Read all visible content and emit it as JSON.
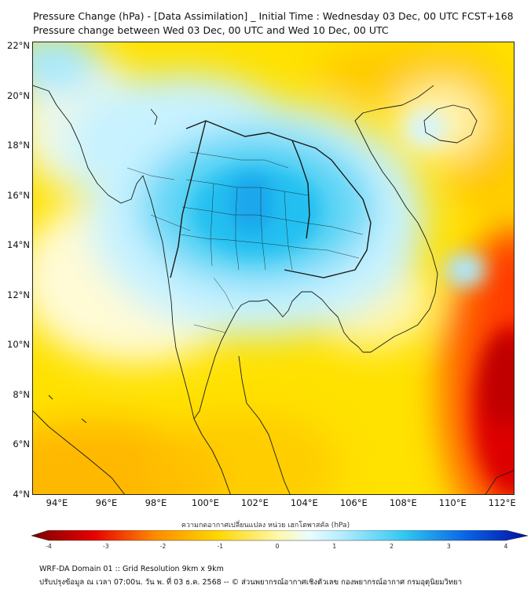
{
  "title": {
    "line1": "Pressure Change (hPa) - [Data Assimilation] _ Initial Time : Wednesday 03 Dec, 00 UTC FCST+168",
    "line2": "Pressure change between Wed 03 Dec, 00 UTC and Wed 10 Dec, 00 UTC"
  },
  "axes": {
    "lat_labels": [
      "22°N",
      "20°N",
      "18°N",
      "16°N",
      "14°N",
      "12°N",
      "10°N",
      "8°N",
      "6°N",
      "4°N"
    ],
    "lat_values": [
      22,
      20,
      18,
      16,
      14,
      12,
      10,
      8,
      6,
      4
    ],
    "lon_labels": [
      "94°E",
      "96°E",
      "98°E",
      "100°E",
      "102°E",
      "104°E",
      "106°E",
      "108°E",
      "110°E",
      "112°E"
    ],
    "lon_values": [
      94,
      96,
      98,
      100,
      102,
      104,
      106,
      108,
      110,
      112
    ],
    "lat_range": [
      4,
      22.2
    ],
    "lon_range": [
      93,
      112.5
    ]
  },
  "colorbar": {
    "title": "ความกดอากาศเปลี่ยนแปลง หน่วย เฮกโตพาสคัล (hPa)",
    "ticks": [
      "-4",
      "-3",
      "-2",
      "-1",
      "0",
      "1",
      "2",
      "3",
      "4"
    ],
    "range": [
      -4,
      4
    ],
    "colors": {
      "minus4": "#7a0000",
      "minus3": "#e60000",
      "minus2": "#ff8c00",
      "minus1": "#ffd700",
      "zero": "#fff8b0",
      "plus0_5": "#eafcff",
      "plus1": "#b4ecff",
      "plus2": "#32c8f0",
      "plus3": "#0a64e6",
      "plus4": "#0010a0"
    }
  },
  "map": {
    "background_color": "#fff200",
    "features": [
      "coastlines",
      "country-borders",
      "province-borders"
    ]
  },
  "footer": {
    "line1": "WRF-DA Domain 01 :: Grid Resolution 9km x 9km",
    "line2": "ปรับปรุงข้อมูล ณ เวลา 07:00น. วัน พ. ที่ 03 ธ.ค. 2568 -- © ส่วนพยากรณ์อากาศเชิงตัวเลข กองพยากรณ์อากาศ กรมอุตุนิยมวิทยา"
  }
}
